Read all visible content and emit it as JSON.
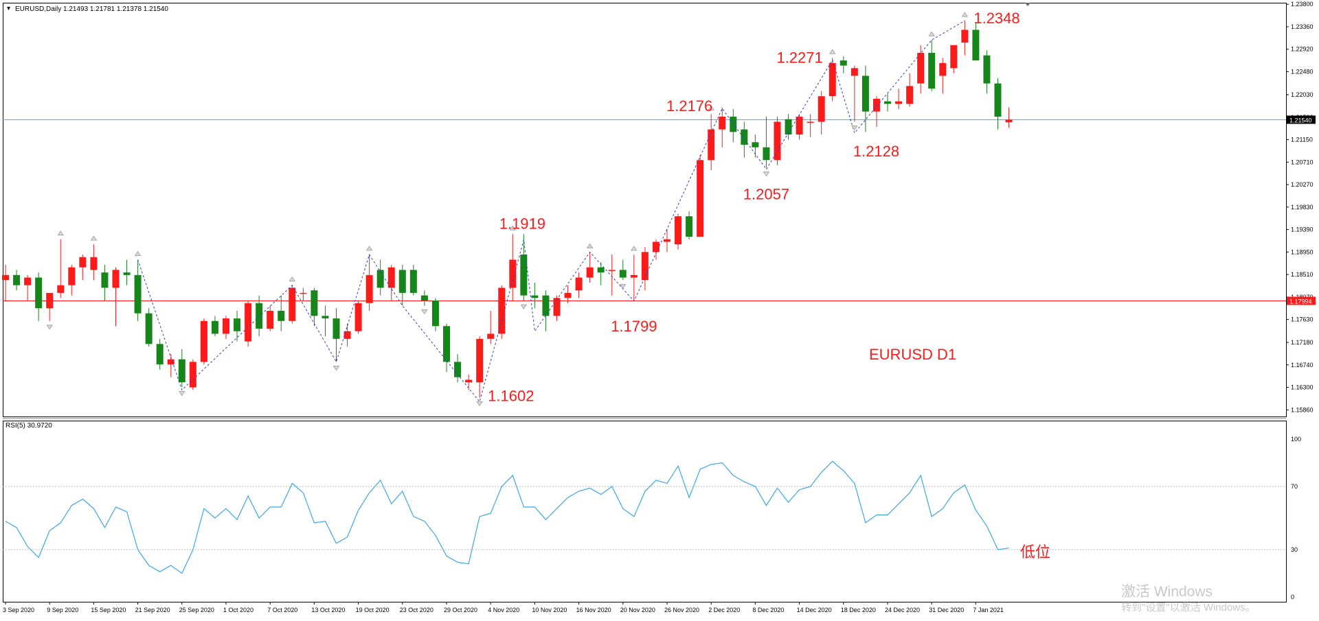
{
  "header": {
    "symbol_info": "EURUSD,Daily  1.21493 1.21781 1.21378 1.21540",
    "rsi_label": "RSI(5) 30.9720"
  },
  "colors": {
    "bull": "#ff1a1a",
    "bear": "#16861a",
    "zigzag": "#2a3fc8",
    "rsi_line": "#3ba6ea",
    "annotation": "#ff1a1a",
    "hline": "#ff1a1a"
  },
  "annotations": {
    "title": "EURUSD D1",
    "low_position": "低位"
  },
  "watermark": {
    "line1": "激活 Windows",
    "line2": "转到\"设置\"以激活 Windows。"
  },
  "chart_data": [
    {
      "type": "candlestick",
      "title": "",
      "price_ticks": [
        "1.23800",
        "1.23360",
        "1.22920",
        "1.22480",
        "1.22030",
        "1.21590",
        "1.21150",
        "1.20710",
        "1.20270",
        "1.19830",
        "1.19390",
        "1.18950",
        "1.18510",
        "1.18070",
        "1.17630",
        "1.17180",
        "1.16740",
        "1.16300",
        "1.15860"
      ],
      "ylim": [
        1.1573,
        1.2383
      ],
      "current_price": "1.21540",
      "horizontal_level": "1.17994",
      "date_labels": [
        "3 Sep 2020",
        "9 Sep 2020",
        "15 Sep 2020",
        "21 Sep 2020",
        "25 Sep 2020",
        "1 Oct 2020",
        "7 Oct 2020",
        "13 Oct 2020",
        "19 Oct 2020",
        "23 Oct 2020",
        "29 Oct 2020",
        "4 Nov 2020",
        "10 Nov 2020",
        "16 Nov 2020",
        "20 Nov 2020",
        "26 Nov 2020",
        "2 Dec 2020",
        "8 Dec 2020",
        "14 Dec 2020",
        "18 Dec 2020",
        "24 Dec 2020",
        "31 Dec 2020",
        "7 Jan 2021"
      ],
      "date_label_index": [
        0,
        4,
        8,
        12,
        16,
        20,
        24,
        28,
        32,
        36,
        40,
        44,
        48,
        52,
        56,
        60,
        64,
        68,
        72,
        76,
        80,
        84,
        88
      ],
      "candles": [
        [
          1.184,
          1.187,
          1.18,
          1.185
        ],
        [
          1.185,
          1.186,
          1.182,
          1.183
        ],
        [
          1.183,
          1.185,
          1.18,
          1.1845
        ],
        [
          1.1845,
          1.1855,
          1.176,
          1.1785
        ],
        [
          1.1785,
          1.1815,
          1.176,
          1.1815
        ],
        [
          1.1815,
          1.192,
          1.1805,
          1.183
        ],
        [
          1.183,
          1.187,
          1.181,
          1.1865
        ],
        [
          1.1865,
          1.189,
          1.184,
          1.1885
        ],
        [
          1.186,
          1.191,
          1.184,
          1.1885
        ],
        [
          1.1855,
          1.187,
          1.18,
          1.1825
        ],
        [
          1.1825,
          1.1865,
          1.175,
          1.186
        ],
        [
          1.1855,
          1.188,
          1.183,
          1.185
        ],
        [
          1.185,
          1.188,
          1.176,
          1.1775
        ],
        [
          1.1775,
          1.1785,
          1.171,
          1.1715
        ],
        [
          1.1715,
          1.1725,
          1.1665,
          1.1675
        ],
        [
          1.1675,
          1.1695,
          1.165,
          1.1685
        ],
        [
          1.1685,
          1.1705,
          1.163,
          1.164
        ],
        [
          1.163,
          1.1685,
          1.1625,
          1.168
        ],
        [
          1.168,
          1.1765,
          1.1675,
          1.176
        ],
        [
          1.176,
          1.177,
          1.173,
          1.1735
        ],
        [
          1.1735,
          1.177,
          1.1725,
          1.1765
        ],
        [
          1.1765,
          1.178,
          1.172,
          1.174
        ],
        [
          1.172,
          1.18,
          1.171,
          1.1795
        ],
        [
          1.1795,
          1.181,
          1.173,
          1.1745
        ],
        [
          1.1745,
          1.179,
          1.174,
          1.178
        ],
        [
          1.178,
          1.181,
          1.174,
          1.176
        ],
        [
          1.176,
          1.183,
          1.1755,
          1.1825
        ],
        [
          1.1815,
          1.1825,
          1.18,
          1.1815
        ],
        [
          1.182,
          1.1825,
          1.175,
          1.177
        ],
        [
          1.177,
          1.179,
          1.173,
          1.1765
        ],
        [
          1.1765,
          1.1785,
          1.168,
          1.1725
        ],
        [
          1.1725,
          1.1755,
          1.171,
          1.174
        ],
        [
          1.174,
          1.18,
          1.1735,
          1.1795
        ],
        [
          1.1795,
          1.189,
          1.178,
          1.185
        ],
        [
          1.186,
          1.188,
          1.181,
          1.1825
        ],
        [
          1.1825,
          1.187,
          1.18,
          1.1865
        ],
        [
          1.186,
          1.187,
          1.179,
          1.1815
        ],
        [
          1.186,
          1.187,
          1.181,
          1.1815
        ],
        [
          1.181,
          1.182,
          1.179,
          1.18
        ],
        [
          1.18,
          1.1805,
          1.174,
          1.175
        ],
        [
          1.175,
          1.1755,
          1.166,
          1.168
        ],
        [
          1.168,
          1.1695,
          1.164,
          1.165
        ],
        [
          1.164,
          1.1655,
          1.1625,
          1.1645
        ],
        [
          1.164,
          1.173,
          1.161,
          1.1725
        ],
        [
          1.1725,
          1.178,
          1.1715,
          1.1735
        ],
        [
          1.1735,
          1.183,
          1.1725,
          1.1825
        ],
        [
          1.1825,
          1.193,
          1.18,
          1.188
        ],
        [
          1.189,
          1.193,
          1.18,
          1.181
        ],
        [
          1.181,
          1.1835,
          1.1785,
          1.1805
        ],
        [
          1.181,
          1.182,
          1.174,
          1.177
        ],
        [
          1.177,
          1.181,
          1.176,
          1.1805
        ],
        [
          1.1805,
          1.183,
          1.1795,
          1.1815
        ],
        [
          1.182,
          1.1855,
          1.1805,
          1.1845
        ],
        [
          1.1845,
          1.1895,
          1.1835,
          1.1865
        ],
        [
          1.1865,
          1.1875,
          1.183,
          1.1855
        ],
        [
          1.186,
          1.189,
          1.181,
          1.186
        ],
        [
          1.186,
          1.188,
          1.184,
          1.1845
        ],
        [
          1.1845,
          1.189,
          1.18,
          1.185
        ],
        [
          1.184,
          1.1905,
          1.182,
          1.1895
        ],
        [
          1.1895,
          1.192,
          1.188,
          1.1915
        ],
        [
          1.1915,
          1.194,
          1.1895,
          1.192
        ],
        [
          1.191,
          1.197,
          1.19,
          1.1965
        ],
        [
          1.1965,
          1.1975,
          1.192,
          1.1925
        ],
        [
          1.1925,
          1.2085,
          1.1925,
          1.2075
        ],
        [
          1.2075,
          1.2165,
          1.2055,
          1.2135
        ],
        [
          1.2135,
          1.2178,
          1.21,
          1.216
        ],
        [
          1.216,
          1.2175,
          1.211,
          1.213
        ],
        [
          1.2135,
          1.215,
          1.208,
          1.2105
        ],
        [
          1.211,
          1.2125,
          1.208,
          1.21
        ],
        [
          1.21,
          1.216,
          1.206,
          1.2075
        ],
        [
          1.2075,
          1.216,
          1.2065,
          1.215
        ],
        [
          1.2155,
          1.2165,
          1.2115,
          1.2125
        ],
        [
          1.2125,
          1.2165,
          1.2115,
          1.216
        ],
        [
          1.215,
          1.2165,
          1.212,
          1.215
        ],
        [
          1.215,
          1.221,
          1.2125,
          1.22
        ],
        [
          1.22,
          1.2275,
          1.219,
          1.2265
        ],
        [
          1.227,
          1.2278,
          1.2245,
          1.226
        ],
        [
          1.224,
          1.226,
          1.215,
          1.2255
        ],
        [
          1.224,
          1.226,
          1.213,
          1.217
        ],
        [
          1.217,
          1.22,
          1.214,
          1.2195
        ],
        [
          1.219,
          1.2205,
          1.217,
          1.2185
        ],
        [
          1.2185,
          1.2215,
          1.2175,
          1.219
        ],
        [
          1.2185,
          1.2245,
          1.218,
          1.222
        ],
        [
          1.2225,
          1.23,
          1.2205,
          1.2285
        ],
        [
          1.2285,
          1.231,
          1.221,
          1.2215
        ],
        [
          1.224,
          1.2275,
          1.2205,
          1.2265
        ],
        [
          1.2255,
          1.23,
          1.2245,
          1.23
        ],
        [
          1.2305,
          1.2348,
          1.228,
          1.233
        ],
        [
          1.233,
          1.2345,
          1.227,
          1.227
        ],
        [
          1.228,
          1.229,
          1.2205,
          1.2225
        ],
        [
          1.2225,
          1.2235,
          1.2135,
          1.216
        ],
        [
          1.2149,
          1.2178,
          1.2138,
          1.2154
        ]
      ],
      "fractal_up_index": [
        5,
        8,
        12,
        26,
        33,
        46,
        53,
        57,
        64,
        75,
        84,
        87
      ],
      "fractal_down_index": [
        4,
        16,
        30,
        38,
        43,
        47,
        56,
        69,
        77
      ],
      "zigzag_points": [
        [
          12,
          1.188
        ],
        [
          16,
          1.1625
        ],
        [
          26,
          1.183
        ],
        [
          30,
          1.168
        ],
        [
          33,
          1.189
        ],
        [
          36,
          1.179
        ],
        [
          43,
          1.1602
        ],
        [
          47,
          1.1919
        ],
        [
          48,
          1.174
        ],
        [
          53,
          1.1895
        ],
        [
          57,
          1.1799
        ],
        [
          65,
          1.2176
        ],
        [
          69,
          1.2057
        ],
        [
          75,
          1.2271
        ],
        [
          77,
          1.2128
        ],
        [
          84,
          1.231
        ],
        [
          87,
          1.2348
        ]
      ],
      "price_labels": [
        {
          "text": "1.2348",
          "index": 87,
          "price": 1.2348,
          "pos": "right-top"
        },
        {
          "text": "1.2271",
          "index": 75,
          "price": 1.2271,
          "pos": "left-top"
        },
        {
          "text": "1.2176",
          "index": 65,
          "price": 1.2176,
          "pos": "left-top"
        },
        {
          "text": "1.2128",
          "index": 77,
          "price": 1.2128,
          "pos": "right-bottom"
        },
        {
          "text": "1.2057",
          "index": 69,
          "price": 1.2057,
          "pos": "below"
        },
        {
          "text": "1.1919",
          "index": 47,
          "price": 1.1919,
          "pos": "above"
        },
        {
          "text": "1.1799",
          "index": 57,
          "price": 1.1799,
          "pos": "below"
        },
        {
          "text": "1.1602",
          "index": 43,
          "price": 1.1602,
          "pos": "right"
        }
      ]
    },
    {
      "type": "line",
      "title": "",
      "ylim": [
        0,
        100
      ],
      "y_ticks": [
        "100",
        "70",
        "30",
        "0"
      ],
      "levels": [
        70,
        30
      ],
      "series": [
        {
          "values": [
            48,
            44,
            32,
            25,
            42,
            47,
            58,
            62,
            56,
            44,
            57,
            54,
            30,
            20,
            16,
            20,
            15,
            30,
            56,
            50,
            56,
            49,
            64,
            50,
            57,
            57,
            72,
            66,
            47,
            48,
            34,
            38,
            55,
            66,
            74,
            59,
            67,
            51,
            48,
            39,
            26,
            22,
            21,
            51,
            53,
            70,
            77,
            57,
            57,
            49,
            56,
            63,
            67,
            69,
            65,
            70,
            56,
            51,
            67,
            74,
            72,
            83,
            63,
            81,
            84,
            85,
            77,
            73,
            70,
            58,
            69,
            60,
            68,
            70,
            79,
            86,
            80,
            72,
            47,
            52,
            52,
            59,
            66,
            77,
            51,
            56,
            66,
            71,
            55,
            45,
            30,
            31
          ]
        }
      ]
    }
  ]
}
